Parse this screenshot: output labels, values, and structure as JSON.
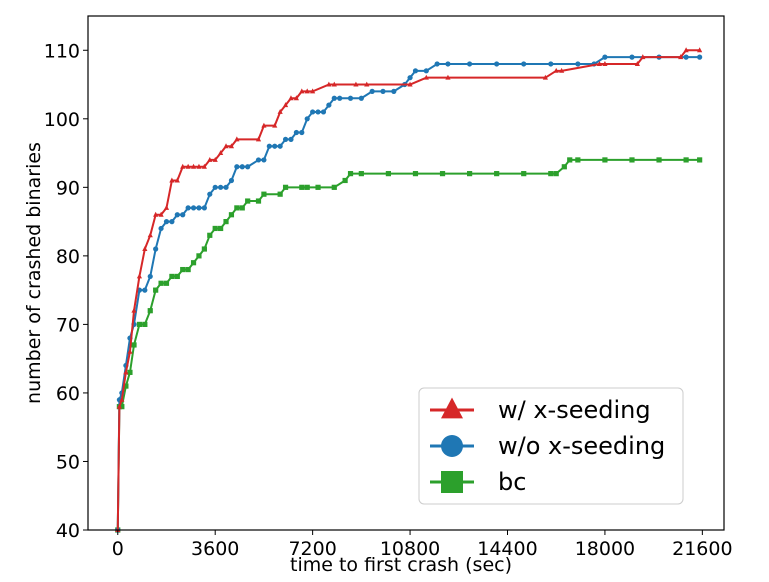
{
  "chart_data": {
    "type": "line",
    "title": "",
    "xlabel": "time to first crash (sec)",
    "ylabel": "number of crashed binaries",
    "xlim": [
      -1100,
      22400
    ],
    "ylim": [
      40,
      115
    ],
    "xticks": [
      0,
      3600,
      7200,
      10800,
      14400,
      18000,
      21600
    ],
    "xtick_labels": [
      "0",
      "3600",
      "7200",
      "10800",
      "14400",
      "18000",
      "21600"
    ],
    "yticks": [
      40,
      50,
      60,
      70,
      80,
      90,
      100,
      110
    ],
    "ytick_labels": [
      "40",
      "50",
      "60",
      "70",
      "80",
      "90",
      "100",
      "110"
    ],
    "grid": false,
    "legend_position": "bottom-right",
    "series": [
      {
        "name": "w/ x-seeding",
        "color": "#d62728",
        "marker": "triangle",
        "x": [
          0,
          60,
          150,
          300,
          450,
          600,
          800,
          1000,
          1200,
          1400,
          1600,
          1800,
          2000,
          2200,
          2400,
          2600,
          2800,
          3000,
          3200,
          3400,
          3600,
          3800,
          4000,
          4200,
          4400,
          5200,
          5400,
          5800,
          6000,
          6200,
          6400,
          6600,
          6800,
          7000,
          7200,
          7800,
          8000,
          8800,
          9200,
          10800,
          11400,
          12200,
          15800,
          16200,
          16400,
          17800,
          18000,
          19200,
          19400,
          20800,
          21000,
          21500
        ],
        "y": [
          40,
          58,
          59,
          63,
          66,
          72,
          77,
          81,
          83,
          86,
          86,
          87,
          91,
          91,
          93,
          93,
          93,
          93,
          93,
          94,
          94,
          95,
          96,
          96,
          97,
          97,
          99,
          99,
          101,
          102,
          103,
          103,
          104,
          104,
          104,
          105,
          105,
          105,
          105,
          105,
          106,
          106,
          106,
          107,
          107,
          108,
          108,
          108,
          109,
          109,
          110,
          110
        ]
      },
      {
        "name": "w/o x-seeding",
        "color": "#1f77b4",
        "marker": "circle",
        "x": [
          0,
          60,
          150,
          300,
          450,
          600,
          800,
          1000,
          1200,
          1400,
          1600,
          1800,
          2000,
          2200,
          2400,
          2600,
          2800,
          3000,
          3200,
          3400,
          3600,
          3800,
          4000,
          4200,
          4400,
          4600,
          4800,
          5200,
          5400,
          5600,
          5800,
          6000,
          6200,
          6400,
          6600,
          6800,
          7000,
          7200,
          7400,
          7600,
          7800,
          8000,
          8200,
          8600,
          9000,
          9400,
          9800,
          10200,
          10600,
          10800,
          11000,
          11400,
          11800,
          12200,
          13000,
          14000,
          15000,
          16000,
          17000,
          17600,
          18000,
          19000,
          20000,
          21000,
          21500
        ],
        "y": [
          40,
          59,
          60,
          64,
          68,
          70,
          75,
          75,
          77,
          81,
          84,
          85,
          85,
          86,
          86,
          87,
          87,
          87,
          87,
          89,
          90,
          90,
          90,
          91,
          93,
          93,
          93,
          94,
          94,
          96,
          96,
          96,
          97,
          97,
          98,
          98,
          100,
          101,
          101,
          101,
          102,
          103,
          103,
          103,
          103,
          104,
          104,
          104,
          105,
          106,
          107,
          107,
          108,
          108,
          108,
          108,
          108,
          108,
          108,
          108,
          109,
          109,
          109,
          109,
          109
        ]
      },
      {
        "name": "bc",
        "color": "#2ca02c",
        "marker": "square",
        "x": [
          0,
          60,
          150,
          300,
          450,
          600,
          800,
          1000,
          1200,
          1400,
          1600,
          1800,
          2000,
          2200,
          2400,
          2600,
          2800,
          3000,
          3200,
          3400,
          3600,
          3800,
          4000,
          4200,
          4400,
          4600,
          4800,
          5200,
          5400,
          6000,
          6200,
          6800,
          7000,
          7400,
          8000,
          8400,
          8600,
          9000,
          10000,
          11000,
          12000,
          13000,
          14000,
          15000,
          16000,
          16200,
          16500,
          16700,
          17000,
          18000,
          19000,
          20000,
          21000,
          21500
        ],
        "y": [
          40,
          58,
          58,
          61,
          63,
          67,
          70,
          70,
          72,
          75,
          76,
          76,
          77,
          77,
          78,
          78,
          79,
          80,
          81,
          83,
          84,
          84,
          85,
          86,
          87,
          87,
          88,
          88,
          89,
          89,
          90,
          90,
          90,
          90,
          90,
          91,
          92,
          92,
          92,
          92,
          92,
          92,
          92,
          92,
          92,
          92,
          93,
          94,
          94,
          94,
          94,
          94,
          94,
          94
        ]
      }
    ]
  }
}
